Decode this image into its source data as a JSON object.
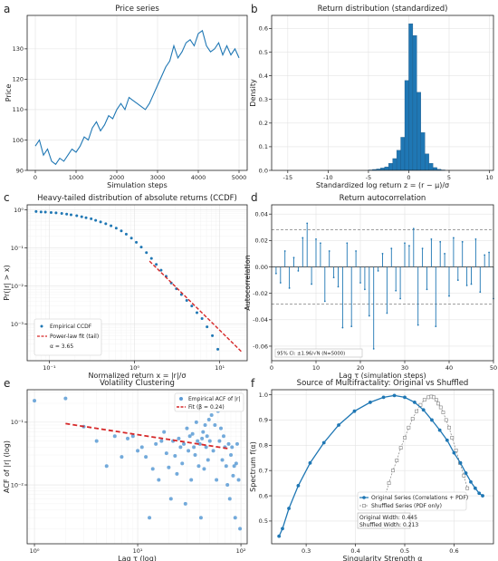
{
  "chart_data": [
    {
      "panel": "a",
      "type": "line",
      "title": "Price series",
      "xlabel": "Simulation steps",
      "ylabel": "Price",
      "xlim": [
        -200,
        5200
      ],
      "ylim": [
        90,
        141
      ],
      "xticks": [
        0,
        1000,
        2000,
        3000,
        4000,
        5000
      ],
      "yticks": [
        90,
        100,
        110,
        120,
        130
      ],
      "grid": true,
      "color": "#1f77b4",
      "x": [
        0,
        100,
        200,
        300,
        400,
        500,
        600,
        700,
        800,
        900,
        1000,
        1100,
        1200,
        1300,
        1400,
        1500,
        1600,
        1700,
        1800,
        1900,
        2000,
        2100,
        2200,
        2300,
        2400,
        2500,
        2600,
        2700,
        2800,
        2900,
        3000,
        3100,
        3200,
        3300,
        3400,
        3500,
        3600,
        3700,
        3800,
        3900,
        4000,
        4100,
        4200,
        4300,
        4400,
        4500,
        4600,
        4700,
        4800,
        4900,
        5000
      ],
      "y": [
        98,
        100,
        95,
        97,
        93,
        92,
        94,
        93,
        95,
        97,
        96,
        98,
        101,
        100,
        104,
        106,
        103,
        105,
        108,
        107,
        110,
        112,
        110,
        114,
        113,
        112,
        111,
        110,
        112,
        115,
        118,
        121,
        124,
        126,
        131,
        127,
        129,
        132,
        133,
        131,
        135,
        136,
        131,
        129,
        130,
        132,
        128,
        131,
        128,
        130,
        127
      ]
    },
    {
      "panel": "b",
      "type": "bar",
      "title": "Return distribution (standardized)",
      "xlabel": "Standardized log return z = (r − μ)/σ",
      "ylabel": "Density",
      "xlim": [
        -17,
        10.5
      ],
      "ylim": [
        0,
        0.655
      ],
      "xticks": [
        -15,
        -10,
        -5,
        0,
        5,
        10
      ],
      "yticks": [
        0.0,
        0.1,
        0.2,
        0.3,
        0.4,
        0.5,
        0.6
      ],
      "grid": true,
      "color": "#1f77b4",
      "bin_width": 0.5,
      "bin_starts": [
        -5,
        -4.5,
        -4,
        -3.5,
        -3,
        -2.5,
        -2,
        -1.5,
        -1,
        -0.5,
        0,
        0.5,
        1,
        1.5,
        2,
        2.5,
        3,
        3.5,
        4
      ],
      "values": [
        0.002,
        0.004,
        0.006,
        0.01,
        0.015,
        0.03,
        0.05,
        0.085,
        0.14,
        0.38,
        0.62,
        0.57,
        0.33,
        0.16,
        0.07,
        0.03,
        0.012,
        0.005,
        0.002
      ]
    },
    {
      "panel": "c",
      "type": "scatter",
      "title": "Heavy-tailed distribution of absolute returns (CCDF)",
      "xlabel": "Normalized return x = |r|/σ",
      "ylabel": "Pr(|r| > x)",
      "xscale": "log",
      "yscale": "log",
      "xlim": [
        0.055,
        21
      ],
      "ylim": [
        0.00011,
        1.35
      ],
      "xticks": [
        0.1,
        1,
        10
      ],
      "xtick_labels": [
        "10⁻¹",
        "10⁰",
        "10¹"
      ],
      "yticks": [
        0.001,
        0.01,
        0.1,
        1
      ],
      "ytick_labels": [
        "10⁻³",
        "10⁻²",
        "10⁻¹",
        "10⁰"
      ],
      "grid": true,
      "legend": "lower-left",
      "series": [
        {
          "name": "Empirical CCDF",
          "color": "#1f77b4",
          "x": [
            0.07,
            0.08,
            0.09,
            0.105,
            0.12,
            0.14,
            0.16,
            0.18,
            0.21,
            0.24,
            0.27,
            0.31,
            0.35,
            0.4,
            0.46,
            0.53,
            0.61,
            0.7,
            0.8,
            0.92,
            1.05,
            1.2,
            1.38,
            1.58,
            1.8,
            2.05,
            2.35,
            2.7,
            3.1,
            3.55,
            4.1,
            4.7,
            5.4,
            6.2,
            7.1,
            8.2,
            9.5
          ],
          "y": [
            0.9,
            0.88,
            0.87,
            0.85,
            0.83,
            0.8,
            0.77,
            0.74,
            0.7,
            0.66,
            0.62,
            0.58,
            0.53,
            0.48,
            0.43,
            0.38,
            0.33,
            0.28,
            0.23,
            0.18,
            0.14,
            0.105,
            0.075,
            0.053,
            0.037,
            0.026,
            0.018,
            0.012,
            0.0085,
            0.006,
            0.0042,
            0.003,
            0.002,
            0.0014,
            0.00085,
            0.0005,
            0.00022
          ]
        },
        {
          "name": "Power-law fit (tail)",
          "color": "#d62728",
          "x": [
            1.5,
            18
          ],
          "y": [
            0.045,
            0.00019
          ]
        }
      ],
      "annotation": "α = 3.65"
    },
    {
      "panel": "d",
      "type": "bar",
      "title": "Return autocorrelation",
      "xlabel": "Lag τ (simulation steps)",
      "ylabel": "Autocorrelation",
      "xlim": [
        0,
        50
      ],
      "ylim": [
        -0.071,
        0.047
      ],
      "xticks": [
        0,
        10,
        20,
        30,
        40,
        50
      ],
      "yticks": [
        -0.06,
        -0.04,
        -0.02,
        0.0,
        0.02,
        0.04
      ],
      "grid": true,
      "color": "#1f77b4",
      "ci": 0.028,
      "annotation": "95% CI: ±1.96/√N (N=5000)",
      "lags": [
        1,
        2,
        3,
        4,
        5,
        6,
        7,
        8,
        9,
        10,
        11,
        12,
        13,
        14,
        15,
        16,
        17,
        18,
        19,
        20,
        21,
        22,
        23,
        24,
        25,
        26,
        27,
        28,
        29,
        30,
        31,
        32,
        33,
        34,
        35,
        36,
        37,
        38,
        39,
        40,
        41,
        42,
        43,
        44,
        45,
        46,
        47,
        48,
        49,
        50
      ],
      "values": [
        -0.005,
        -0.012,
        0.012,
        -0.016,
        0.007,
        -0.003,
        0.022,
        0.033,
        -0.013,
        0.021,
        0.018,
        -0.026,
        0.012,
        -0.008,
        -0.015,
        -0.046,
        0.018,
        -0.045,
        0.012,
        -0.012,
        -0.017,
        -0.037,
        -0.062,
        -0.003,
        0.01,
        -0.035,
        0.014,
        -0.018,
        -0.024,
        0.018,
        0.016,
        0.029,
        -0.044,
        0.014,
        -0.017,
        0.021,
        -0.045,
        0.019,
        0.01,
        -0.022,
        0.022,
        -0.01,
        0.019,
        -0.014,
        -0.013,
        0.021,
        -0.019,
        0.009,
        0.011,
        -0.024
      ]
    },
    {
      "panel": "e",
      "type": "scatter",
      "title": "Volatility Clustering",
      "xlabel": "Lag τ (log)",
      "ylabel": "ACF of |r| (log)",
      "xscale": "log",
      "yscale": "log",
      "xlim": [
        0.85,
        115
      ],
      "ylim": [
        0.00115,
        0.33
      ],
      "xticks": [
        1,
        10,
        100
      ],
      "xtick_labels": [
        "10⁰",
        "10¹",
        "10²"
      ],
      "yticks": [
        0.01,
        0.1
      ],
      "ytick_labels": [
        "10⁻²",
        "10⁻¹"
      ],
      "grid": true,
      "legend": "top-right",
      "series": [
        {
          "name": "Empirical ACF of |r|",
          "color": "#5b9bd5",
          "x": [
            1,
            2,
            3,
            4,
            5,
            6,
            7,
            8,
            9,
            10,
            11,
            12,
            13,
            14,
            15,
            16,
            17,
            18,
            19,
            20,
            21,
            22,
            23,
            24,
            25,
            26,
            27,
            28,
            29,
            30,
            31,
            32,
            33,
            34,
            35,
            36,
            37,
            38,
            39,
            40,
            41,
            42,
            43,
            44,
            45,
            46,
            47,
            48,
            49,
            50,
            52,
            54,
            56,
            58,
            60,
            62,
            64,
            66,
            68,
            70,
            72,
            74,
            76,
            78,
            80,
            82,
            84,
            86,
            88,
            90,
            92,
            95,
            98
          ],
          "y": [
            0.22,
            0.24,
            0.085,
            0.05,
            0.02,
            0.06,
            0.028,
            0.055,
            0.06,
            0.035,
            0.04,
            0.028,
            0.003,
            0.018,
            0.045,
            0.012,
            0.05,
            0.07,
            0.032,
            0.019,
            0.006,
            0.05,
            0.029,
            0.015,
            0.055,
            0.04,
            0.022,
            0.045,
            0.005,
            0.08,
            0.035,
            0.06,
            0.012,
            0.065,
            0.04,
            0.03,
            0.1,
            0.05,
            0.02,
            0.045,
            0.003,
            0.055,
            0.07,
            0.018,
            0.09,
            0.04,
            0.06,
            0.025,
            0.11,
            0.05,
            0.13,
            0.035,
            0.09,
            0.012,
            0.15,
            0.05,
            0.08,
            0.025,
            0.06,
            0.04,
            0.02,
            0.01,
            0.045,
            0.006,
            0.03,
            0.04,
            0.014,
            0.02,
            0.003,
            0.022,
            0.045,
            0.012,
            0.002
          ]
        },
        {
          "name": "Fit (β = 0.24)",
          "color": "#d62728",
          "x": [
            2,
            75
          ],
          "y": [
            0.095,
            0.038
          ]
        }
      ]
    },
    {
      "panel": "f",
      "type": "line",
      "title": "Source of Multifractality: Original vs Shuffled",
      "xlabel": "Singularity Strength α",
      "ylabel": "Spectrum f(α)",
      "xlim": [
        0.23,
        0.68
      ],
      "ylim": [
        0.41,
        1.02
      ],
      "xticks": [
        0.3,
        0.4,
        0.5,
        0.6
      ],
      "yticks": [
        0.5,
        0.6,
        0.7,
        0.8,
        0.9,
        1.0
      ],
      "grid": true,
      "legend": "lower-right",
      "annotation": [
        "Original Width: 0.445",
        "Shuffled Width: 0.213"
      ],
      "series": [
        {
          "name": "Original Series (Correlations + PDF)",
          "color": "#1f77b4",
          "x": [
            0.245,
            0.252,
            0.265,
            0.284,
            0.308,
            0.336,
            0.366,
            0.398,
            0.43,
            0.457,
            0.479,
            0.5,
            0.52,
            0.538,
            0.555,
            0.571,
            0.586,
            0.6,
            0.613,
            0.624,
            0.634,
            0.643,
            0.651,
            0.658
          ],
          "y": [
            0.44,
            0.47,
            0.55,
            0.64,
            0.73,
            0.81,
            0.88,
            0.935,
            0.97,
            0.99,
            0.997,
            0.99,
            0.97,
            0.94,
            0.9,
            0.86,
            0.82,
            0.77,
            0.73,
            0.69,
            0.655,
            0.63,
            0.61,
            0.6
          ]
        },
        {
          "name": "Shuffled Series (PDF only)",
          "color": "#808080",
          "x": [
            0.452,
            0.46,
            0.468,
            0.476,
            0.484,
            0.492,
            0.5,
            0.508,
            0.516,
            0.524,
            0.532,
            0.54,
            0.548,
            0.554,
            0.559,
            0.564,
            0.568,
            0.573,
            0.578,
            0.584,
            0.59,
            0.596,
            0.604,
            0.612,
            0.62,
            0.627
          ],
          "y": [
            0.55,
            0.6,
            0.65,
            0.7,
            0.74,
            0.79,
            0.83,
            0.87,
            0.905,
            0.935,
            0.96,
            0.98,
            0.99,
            0.993,
            0.99,
            0.98,
            0.965,
            0.95,
            0.93,
            0.9,
            0.87,
            0.83,
            0.78,
            0.73,
            0.68,
            0.63
          ]
        }
      ]
    }
  ]
}
